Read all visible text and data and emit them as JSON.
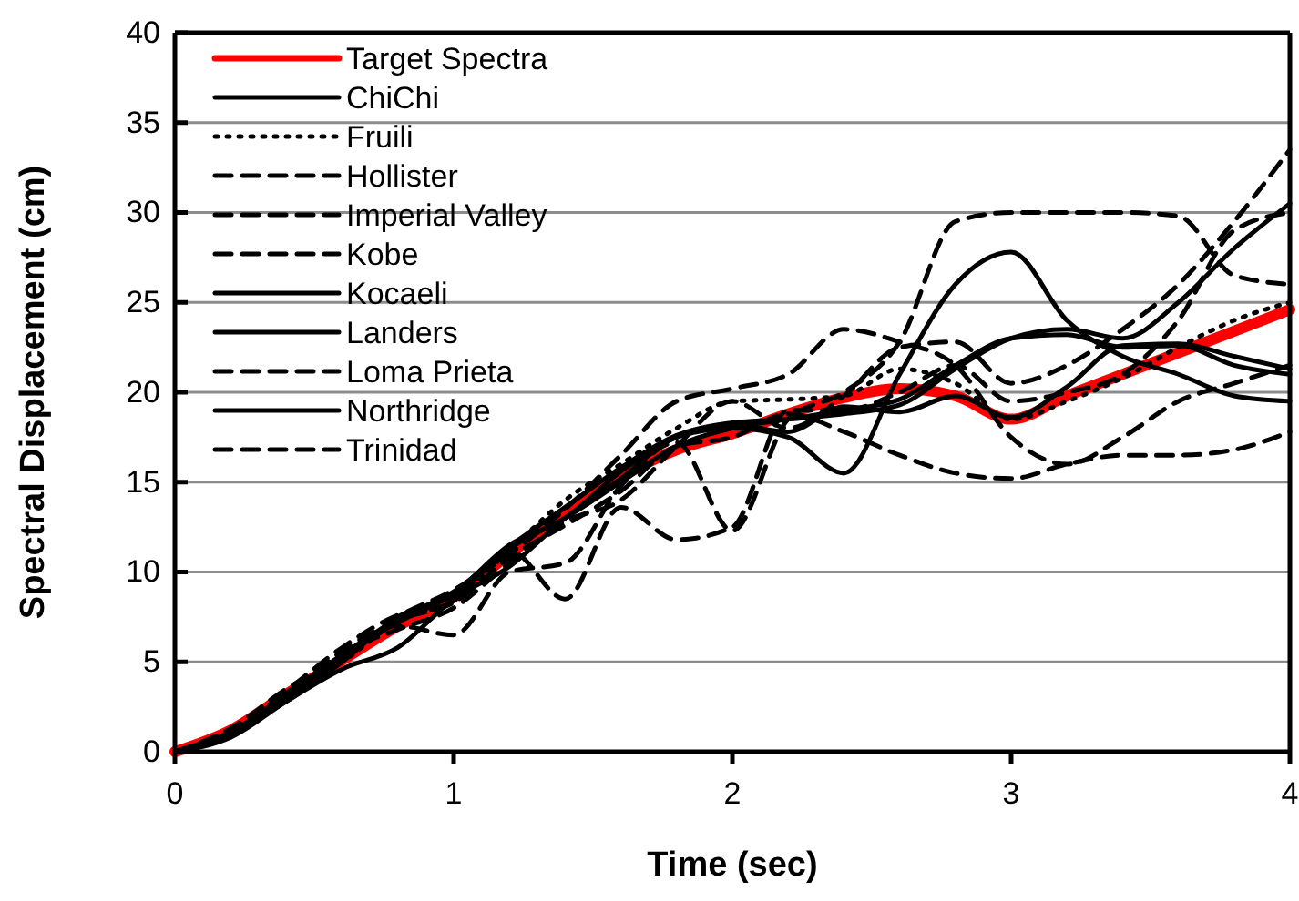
{
  "chart_data": {
    "type": "line",
    "xlabel": "Time (sec)",
    "ylabel": "Spectral Displacement (cm)",
    "x": [
      0,
      0.2,
      0.4,
      0.6,
      0.8,
      1.0,
      1.2,
      1.4,
      1.6,
      1.8,
      2.0,
      2.2,
      2.4,
      2.6,
      2.8,
      3.0,
      3.2,
      3.4,
      3.6,
      3.8,
      4.0
    ],
    "xlim": [
      0,
      4
    ],
    "xticks": [
      0,
      1,
      2,
      3,
      4
    ],
    "ylim": [
      0,
      40
    ],
    "yticks": [
      0,
      5,
      10,
      15,
      20,
      25,
      30,
      35,
      40
    ],
    "grid": "y",
    "legend": "top left",
    "marker": "none",
    "series": [
      {
        "name": "Target Spectra",
        "color": "#ff0000",
        "line_style": "solid",
        "values": [
          0,
          1.2,
          3.2,
          5.1,
          7.0,
          8.6,
          11.0,
          13.3,
          15.3,
          16.8,
          17.7,
          18.8,
          19.7,
          20.2,
          19.8,
          18.5,
          19.8,
          21.0,
          22.2,
          23.4,
          24.6
        ]
      },
      {
        "name": "ChiChi",
        "color": "#000000",
        "line_style": "solid",
        "values": [
          0,
          1.0,
          3.0,
          5.3,
          7.2,
          8.8,
          11.5,
          13.0,
          15.6,
          17.5,
          18.2,
          17.8,
          19.2,
          18.9,
          19.8,
          18.6,
          20.3,
          22.6,
          22.7,
          22.0,
          21.3
        ]
      },
      {
        "name": "Fruili",
        "color": "#000000",
        "line_style": "dotted",
        "values": [
          0,
          1.1,
          3.3,
          5.0,
          7.3,
          8.4,
          11.2,
          14.0,
          16.0,
          18.0,
          19.5,
          19.6,
          19.8,
          21.3,
          20.5,
          18.5,
          19.5,
          20.8,
          22.5,
          24.0,
          25.0
        ]
      },
      {
        "name": "Hollister",
        "color": "#000000",
        "line_style": "dashed",
        "values": [
          0,
          1.2,
          3.0,
          5.5,
          6.8,
          8.0,
          10.5,
          12.8,
          14.0,
          17.0,
          19.5,
          18.0,
          19.8,
          22.5,
          22.8,
          20.5,
          21.5,
          23.5,
          26.0,
          29.5,
          33.5
        ]
      },
      {
        "name": "Imperial Valley",
        "color": "#000000",
        "line_style": "dashed",
        "values": [
          0,
          1.3,
          3.5,
          5.2,
          7.5,
          9.0,
          11.0,
          13.5,
          16.5,
          19.5,
          20.2,
          21.0,
          23.5,
          22.8,
          21.5,
          17.5,
          16.0,
          17.5,
          19.5,
          20.5,
          21.5
        ]
      },
      {
        "name": "Kobe",
        "color": "#000000",
        "line_style": "dashed",
        "values": [
          0,
          1.0,
          3.0,
          5.6,
          7.0,
          6.5,
          10.0,
          10.5,
          14.8,
          17.2,
          12.3,
          18.5,
          20.0,
          22.8,
          29.5,
          30.0,
          30.0,
          30.0,
          29.8,
          26.5,
          26.0
        ]
      },
      {
        "name": "Kocaeli",
        "color": "#000000",
        "line_style": "solid",
        "values": [
          0,
          1.1,
          2.8,
          5.0,
          7.5,
          8.7,
          11.3,
          13.0,
          15.0,
          17.0,
          18.0,
          18.5,
          19.0,
          19.6,
          21.5,
          23.0,
          23.2,
          22.5,
          22.6,
          21.5,
          21.0
        ]
      },
      {
        "name": "Landers",
        "color": "#000000",
        "line_style": "solid",
        "values": [
          0,
          0.8,
          2.8,
          4.6,
          5.8,
          8.5,
          10.3,
          13.0,
          15.2,
          17.5,
          18.0,
          17.5,
          15.5,
          21.0,
          26.0,
          27.8,
          24.0,
          22.0,
          21.0,
          19.8,
          19.5
        ]
      },
      {
        "name": "Loma Prieta",
        "color": "#000000",
        "line_style": "dashed",
        "values": [
          0,
          1.0,
          2.9,
          5.2,
          7.3,
          8.3,
          10.8,
          12.6,
          14.5,
          17.0,
          17.5,
          18.8,
          17.8,
          16.5,
          15.5,
          15.2,
          16.0,
          16.5,
          16.5,
          16.8,
          17.8
        ]
      },
      {
        "name": "Northridge",
        "color": "#000000",
        "line_style": "solid",
        "values": [
          0,
          1.1,
          3.2,
          5.4,
          7.4,
          8.9,
          11.4,
          13.6,
          15.8,
          17.6,
          18.3,
          18.5,
          18.8,
          19.3,
          21.3,
          23.0,
          23.5,
          23.0,
          25.0,
          28.0,
          30.5
        ]
      },
      {
        "name": "Trinidad",
        "color": "#000000",
        "line_style": "dashed",
        "values": [
          0,
          1.2,
          3.4,
          5.8,
          7.6,
          8.3,
          11.2,
          8.5,
          13.6,
          11.8,
          12.5,
          19.0,
          19.0,
          20.0,
          21.5,
          19.5,
          20.0,
          21.0,
          24.0,
          29.0,
          30.0
        ]
      }
    ]
  }
}
